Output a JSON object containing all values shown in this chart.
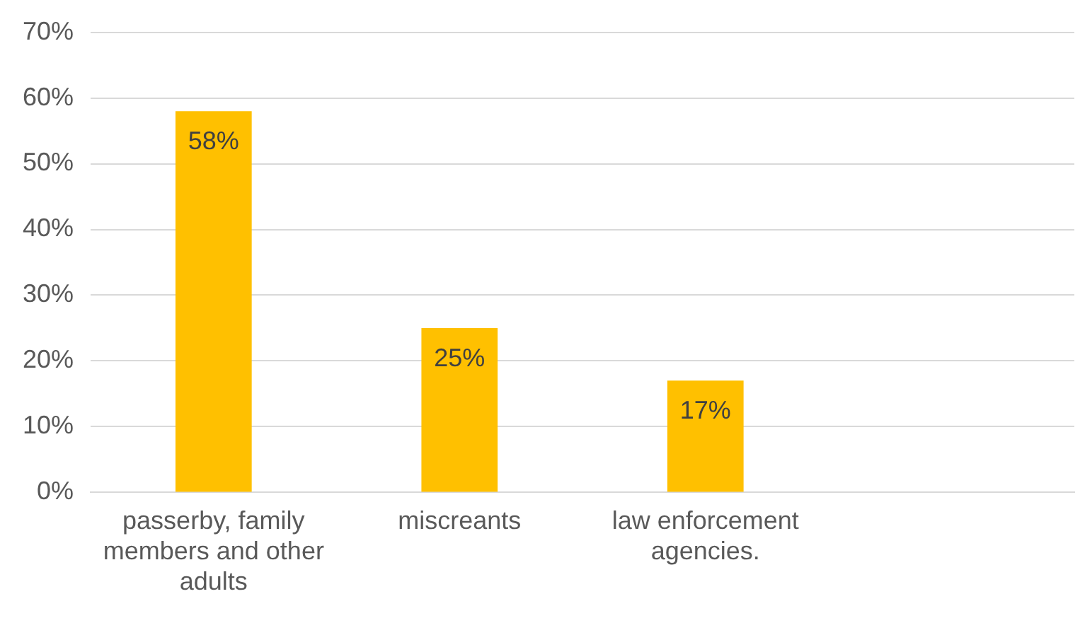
{
  "chart_data": {
    "type": "bar",
    "categories": [
      "passerby, family members and other adults",
      "miscreants",
      "law enforcement agencies.",
      null
    ],
    "values": [
      58,
      25,
      17,
      null
    ],
    "color": "#ffc000",
    "value_labels": [
      "58%",
      "25%",
      "17%",
      null
    ],
    "ylim": [
      0,
      70
    ],
    "yticks": [
      {
        "value": 0,
        "label": "0%"
      },
      {
        "value": 10,
        "label": "10%"
      },
      {
        "value": 20,
        "label": "20%"
      },
      {
        "value": 30,
        "label": "30%"
      },
      {
        "value": 40,
        "label": "40%"
      },
      {
        "value": 50,
        "label": "50%"
      },
      {
        "value": 60,
        "label": "60%"
      },
      {
        "value": 70,
        "label": "70%"
      }
    ],
    "grid": "y",
    "legend": false
  }
}
